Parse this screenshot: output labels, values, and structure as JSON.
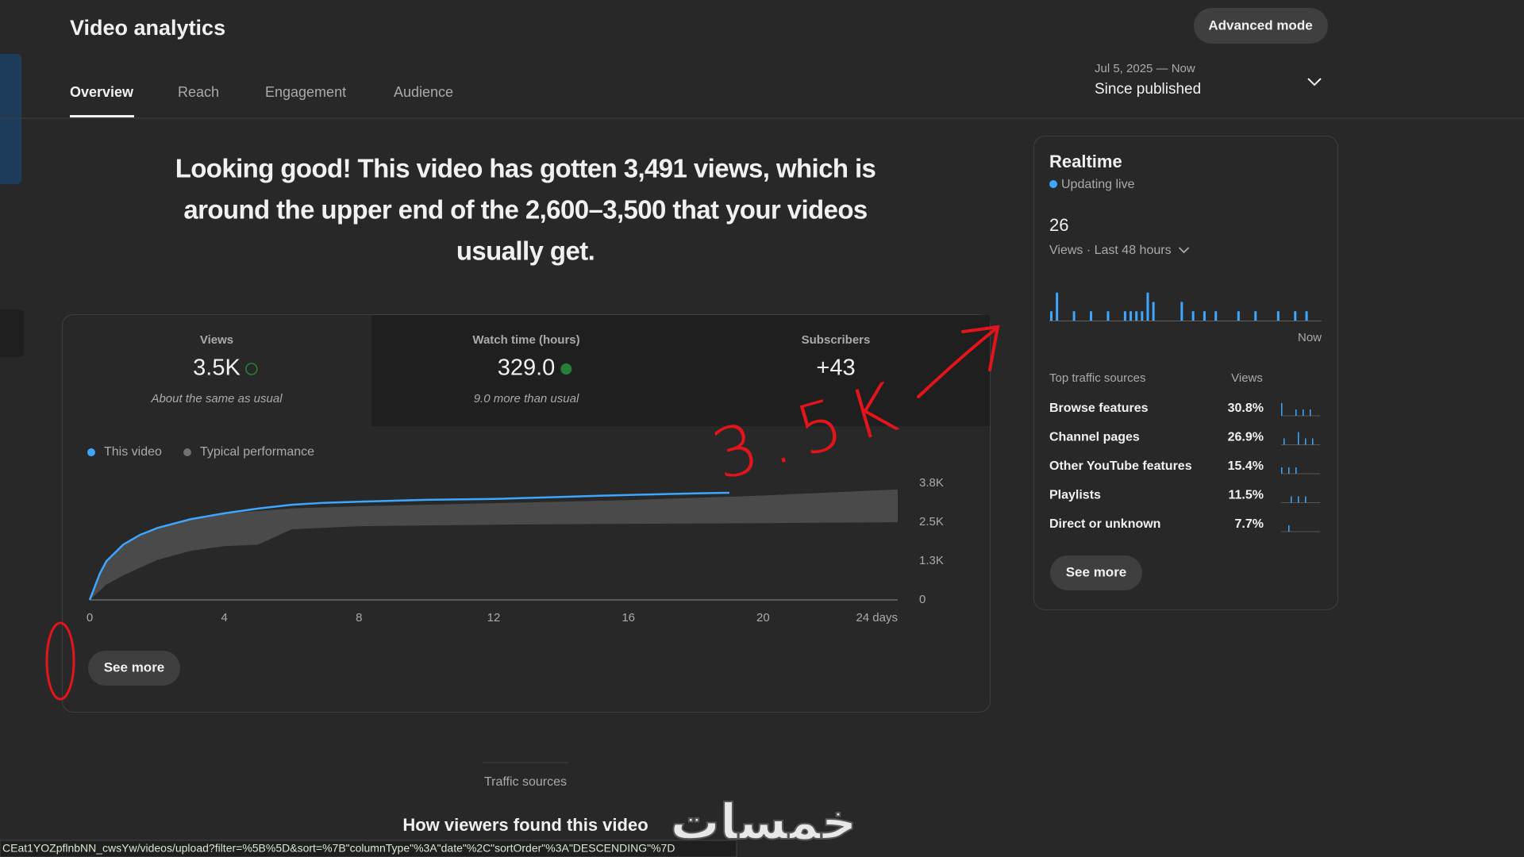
{
  "header": {
    "title": "Video analytics",
    "button": "Advanced mode"
  },
  "tabs": [
    "Overview",
    "Reach",
    "Engagement",
    "Audience"
  ],
  "date_range": {
    "range": "Jul 5, 2025 — Now",
    "label": "Since published"
  },
  "summary": [
    "Looking good! This video has gotten 3,491 views, which is",
    "around the upper end of the 2,600–3,500 that your videos",
    "usually get."
  ],
  "metrics": [
    {
      "label": "Views",
      "value": "3.5K",
      "note": "About the same as usual"
    },
    {
      "label": "Watch time (hours)",
      "value": "329.0",
      "note": "9.0 more than usual"
    },
    {
      "label": "Subscribers",
      "value": "+43"
    }
  ],
  "chart_data": {
    "type": "line",
    "xlim": [
      0,
      24
    ],
    "xticks": [
      0,
      4,
      8,
      12,
      16,
      20,
      {
        "value": 24,
        "label": "24 days"
      }
    ],
    "ylim": [
      0,
      3800
    ],
    "yticks": [
      0,
      {
        "value": 1267,
        "label": "1.3K"
      },
      {
        "value": 2533,
        "label": "2.5K"
      },
      {
        "value": 3800,
        "label": "3.8K"
      }
    ],
    "series": [
      {
        "name": "This video",
        "color": "#3ea6ff",
        "x": [
          0,
          0.3,
          0.5,
          1,
          1.5,
          2,
          3,
          4,
          5,
          6,
          7,
          8,
          10,
          12,
          14,
          16,
          18,
          19
        ],
        "values": [
          0,
          855,
          1267,
          1805,
          2120,
          2340,
          2630,
          2820,
          2975,
          3100,
          3165,
          3200,
          3260,
          3290,
          3355,
          3420,
          3470,
          3491
        ]
      },
      {
        "name": "Typical performance",
        "color": "#4a4a4a",
        "x": [
          0,
          0.5,
          1,
          2,
          3,
          4,
          5,
          6,
          8,
          12,
          16,
          20,
          24
        ],
        "values": [
          0,
          1300,
          1800,
          2350,
          2650,
          2800,
          2900,
          2980,
          3050,
          3150,
          3250,
          3400,
          3600
        ],
        "low": [
          0,
          500,
          800,
          1300,
          1600,
          1750,
          1800,
          2300,
          2400,
          2450,
          2480,
          2500,
          2530
        ]
      }
    ]
  },
  "see_more": "See more",
  "annotation": "3.5K",
  "realtime": {
    "title": "Realtime",
    "status": "Updating live",
    "views": "26",
    "period": "Views · Last 48 hours",
    "now_label": "Now",
    "bars": {
      "color": "#3ea6ff",
      "ylim": [
        0,
        4
      ],
      "values": [
        1,
        3,
        0,
        0,
        1,
        0,
        0,
        1,
        0,
        0,
        1,
        0,
        0,
        1,
        1,
        1,
        1,
        3,
        2,
        0,
        0,
        0,
        0,
        2,
        0,
        1,
        0,
        1,
        0,
        1,
        0,
        0,
        0,
        1,
        0,
        0,
        1,
        0,
        0,
        0,
        1,
        0,
        0,
        1,
        0,
        1,
        0,
        0
      ]
    },
    "traffic_header": [
      "Top traffic sources",
      "Views"
    ],
    "sources": [
      {
        "name": "Browse features",
        "share": "30.8%"
      },
      {
        "name": "Channel pages",
        "share": "26.9%"
      },
      {
        "name": "Other YouTube features",
        "share": "15.4%"
      },
      {
        "name": "Playlists",
        "share": "11.5%"
      },
      {
        "name": "Direct or unknown",
        "share": "7.7%"
      }
    ],
    "button": "See more"
  },
  "section": {
    "tab": "Traffic sources",
    "heading": "How viewers found this video"
  },
  "watermark": "خمسات",
  "status_url": "CEat1YOZpflnbNN_cwsYw/videos/upload?filter=%5B%5D&sort=%7B\"columnType\"%3A\"date\"%2C\"sortOrder\"%3A\"DESCENDING\"%7D"
}
